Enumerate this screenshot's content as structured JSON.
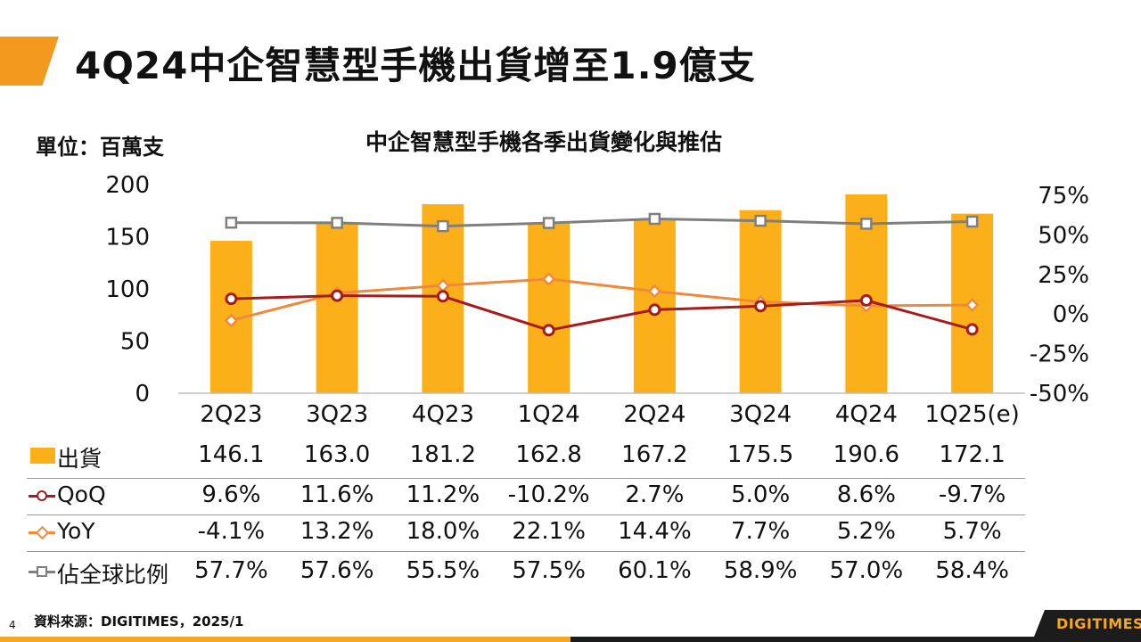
{
  "page": {
    "title": "4Q24中企智慧型手機出貨增至1.9億支",
    "unit_label": "單位：百萬支",
    "source": "資料來源：DIGITIMES，2025/1",
    "page_number": "4",
    "logo_text": "DIGITIMES"
  },
  "colors": {
    "bar": "#fbb01a",
    "qoq": "#a51c1c",
    "yoy": "#ee8a3c",
    "share": "#7f7f7f",
    "accent": "#f39a1e"
  },
  "chart_data": {
    "type": "bar",
    "title": "中企智慧型手機各季出貨變化與推估",
    "categories": [
      "2Q23",
      "3Q23",
      "4Q23",
      "1Q24",
      "2Q24",
      "3Q24",
      "4Q24",
      "1Q25(e)"
    ],
    "ylim_left": [
      0,
      200
    ],
    "left_ticks": [
      "200",
      "150",
      "100",
      "50",
      "0"
    ],
    "ylim_right": [
      -50,
      75
    ],
    "right_ticks": [
      "75%",
      "50%",
      "25%",
      "0%",
      "-25%",
      "-50%"
    ],
    "series": [
      {
        "name": "出貨",
        "type": "bar",
        "axis": "left",
        "values": [
          146.1,
          163.0,
          181.2,
          162.8,
          167.2,
          175.5,
          190.6,
          172.1
        ],
        "labels": [
          "146.1",
          "163.0",
          "181.2",
          "162.8",
          "167.2",
          "175.5",
          "190.6",
          "172.1"
        ]
      },
      {
        "name": "QoQ",
        "type": "line",
        "axis": "right",
        "values": [
          9.6,
          11.6,
          11.2,
          -10.2,
          2.7,
          5.0,
          8.6,
          -9.7
        ],
        "labels": [
          "9.6%",
          "11.6%",
          "11.2%",
          "-10.2%",
          "2.7%",
          "5.0%",
          "8.6%",
          "-9.7%"
        ]
      },
      {
        "name": "YoY",
        "type": "line",
        "axis": "right",
        "values": [
          -4.1,
          13.2,
          18.0,
          22.1,
          14.4,
          7.7,
          5.2,
          5.7
        ],
        "labels": [
          "-4.1%",
          "13.2%",
          "18.0%",
          "22.1%",
          "14.4%",
          "7.7%",
          "5.2%",
          "5.7%"
        ]
      },
      {
        "name": "佔全球比例",
        "type": "line",
        "axis": "right",
        "values": [
          57.7,
          57.6,
          55.5,
          57.5,
          60.1,
          58.9,
          57.0,
          58.4
        ],
        "labels": [
          "57.7%",
          "57.6%",
          "55.5%",
          "57.5%",
          "60.1%",
          "58.9%",
          "57.0%",
          "58.4%"
        ]
      }
    ]
  }
}
